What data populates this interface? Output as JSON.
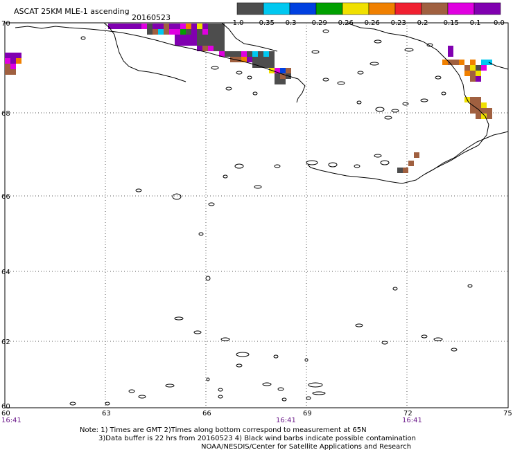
{
  "header": {
    "title": "ASCAT 25KM MLE-1 ascending",
    "date": "20160523"
  },
  "colorbar": {
    "colors": [
      "#4d4d4d",
      "#00c8f0",
      "#0040e0",
      "#00a000",
      "#f0e000",
      "#f08000",
      "#f02030",
      "#a06040",
      "#e000e0",
      "#8000b0"
    ],
    "labels": [
      "-1.0",
      "-0.35",
      "-0.3",
      "-0.29",
      "-0.26",
      "-0.26",
      "-0.23",
      "-0.2",
      "-0.15",
      "-0.1",
      "0.0"
    ]
  },
  "axes": {
    "lon_labels": [
      "60",
      "63",
      "66",
      "69",
      "72",
      "75"
    ],
    "lat_labels": [
      "70",
      "68",
      "66",
      "64",
      "62",
      "60"
    ],
    "time_labels": [
      "16:41",
      "16:41",
      "16:41"
    ]
  },
  "notes": {
    "line1": "Note: 1) Times are GMT 2)Times along bottom correspond to measurement at 65N",
    "line2": "3)Data buffer is 22 hrs from 20160523 4) Black wind barbs indicate possible contamination",
    "line3": "NOAA/NESDIS/Center for Satellite Applications and Research"
  }
}
